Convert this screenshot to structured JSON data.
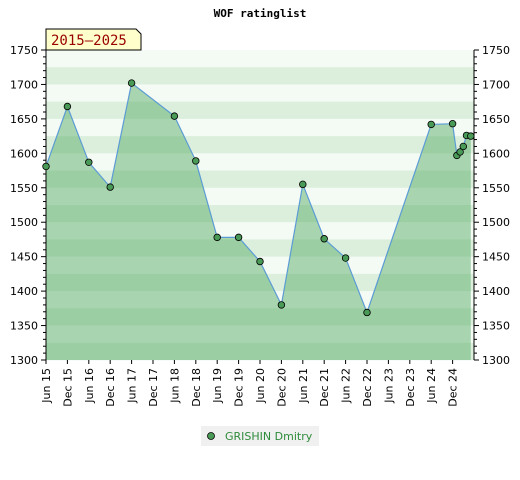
{
  "chart_data": {
    "type": "area",
    "title": "WOF ratinglist",
    "period_badge": "2015–2025",
    "xlabel": "",
    "ylabel": "",
    "ylim": [
      1300,
      1750
    ],
    "y_ticks": [
      1300,
      1350,
      1400,
      1450,
      1500,
      1550,
      1600,
      1650,
      1700,
      1750
    ],
    "x_ticks": [
      "Jun 15",
      "Dec 15",
      "Jun 16",
      "Dec 16",
      "Jun 17",
      "Dec 17",
      "Jun 18",
      "Dec 18",
      "Jun 19",
      "Dec 19",
      "Jun 20",
      "Dec 20",
      "Jun 21",
      "Dec 21",
      "Jun 22",
      "Dec 22",
      "Jun 23",
      "Dec 23",
      "Jun 24",
      "Dec 24"
    ],
    "legend_position": "bottom-center",
    "grid": true,
    "series": [
      {
        "name": "GRISHIN Dmitry",
        "color": "#5b9bd5",
        "fill": "#5cb06a",
        "marker": "#4a9a57",
        "points": [
          {
            "x": 0,
            "y": 1581
          },
          {
            "x": 1,
            "y": 1668
          },
          {
            "x": 2,
            "y": 1587
          },
          {
            "x": 3,
            "y": 1551
          },
          {
            "x": 4,
            "y": 1702
          },
          {
            "x": 6,
            "y": 1654
          },
          {
            "x": 7,
            "y": 1589
          },
          {
            "x": 8,
            "y": 1478
          },
          {
            "x": 9,
            "y": 1478
          },
          {
            "x": 10,
            "y": 1443
          },
          {
            "x": 11,
            "y": 1380
          },
          {
            "x": 12,
            "y": 1555
          },
          {
            "x": 13,
            "y": 1476
          },
          {
            "x": 14,
            "y": 1448
          },
          {
            "x": 15,
            "y": 1369
          },
          {
            "x": 18,
            "y": 1642
          },
          {
            "x": 19,
            "y": 1643
          },
          {
            "x": 19.2,
            "y": 1597
          },
          {
            "x": 19.35,
            "y": 1602
          },
          {
            "x": 19.5,
            "y": 1610
          },
          {
            "x": 19.65,
            "y": 1626
          },
          {
            "x": 19.85,
            "y": 1625
          }
        ]
      }
    ]
  }
}
